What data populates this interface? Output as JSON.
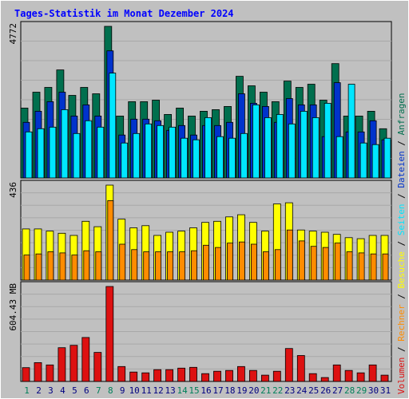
{
  "chart_data": {
    "type": "bar",
    "title": "Tages-Statistik im Monat Dezember 2024",
    "categories": [
      "1",
      "2",
      "3",
      "4",
      "5",
      "6",
      "7",
      "8",
      "9",
      "10",
      "11",
      "12",
      "13",
      "14",
      "15",
      "16",
      "17",
      "18",
      "19",
      "20",
      "21",
      "22",
      "23",
      "24",
      "25",
      "26",
      "27",
      "28",
      "29",
      "30",
      "31"
    ],
    "weekend_days": [
      "1",
      "7",
      "8",
      "14",
      "15",
      "21",
      "22",
      "28",
      "29"
    ],
    "panels": [
      {
        "name": "hits",
        "axis_label": "4772",
        "ymax": 4772,
        "series": [
          {
            "name": "Anfragen",
            "color": "#006f4e",
            "values": [
              2200,
              2700,
              2850,
              3400,
              2600,
              2850,
              2650,
              4772,
              1950,
              2400,
              2400,
              2450,
              2000,
              2200,
              1950,
              2100,
              2150,
              2250,
              3200,
              2900,
              2700,
              2400,
              3050,
              2850,
              2950,
              2450,
              3600,
              1950,
              1950,
              2100,
              1550
            ]
          },
          {
            "name": "Dateien",
            "color": "#0033cc",
            "values": [
              1750,
              2100,
              2400,
              2700,
              1950,
              2300,
              1950,
              4000,
              1350,
              1850,
              1850,
              1800,
              1500,
              1650,
              1350,
              1650,
              1650,
              1750,
              2650,
              2350,
              2250,
              1750,
              2500,
              2300,
              2300,
              1300,
              3000,
              1450,
              1450,
              1800,
              1200
            ]
          },
          {
            "name": "Seiten",
            "color": "#00e6ff",
            "values": [
              1450,
              1550,
              1600,
              2150,
              1400,
              1800,
              1600,
              3300,
              1100,
              1400,
              1700,
              1650,
              1600,
              1250,
              1200,
              1900,
              1300,
              1250,
              1400,
              2300,
              1900,
              2000,
              1700,
              2100,
              1900,
              2350,
              1300,
              2950,
              1100,
              1050,
              1250
            ]
          }
        ]
      },
      {
        "name": "visits",
        "axis_label": "436",
        "ymax": 436,
        "series": [
          {
            "name": "Besuche",
            "color": "#ffff00",
            "values": [
              235,
              235,
              225,
              215,
              205,
              270,
              245,
              436,
              280,
              240,
              250,
              205,
              220,
              225,
              240,
              265,
              270,
              290,
              300,
              265,
              225,
              350,
              355,
              230,
              225,
              220,
              210,
              195,
              190,
              205,
              205
            ]
          },
          {
            "name": "Rechner",
            "color": "#ff8c00",
            "values": [
              115,
              120,
              130,
              125,
              115,
              135,
              130,
              365,
              165,
              140,
              130,
              130,
              130,
              130,
              135,
              160,
              150,
              170,
              175,
              165,
              130,
              140,
              230,
              180,
              155,
              150,
              170,
              130,
              125,
              120,
              120
            ]
          }
        ]
      },
      {
        "name": "volume",
        "axis_label": "604.43 MB",
        "ymax": 604.43,
        "series": [
          {
            "name": "Volumen",
            "color": "#dd1111",
            "values": [
              88,
              120,
              105,
              215,
              230,
              280,
              185,
              604.43,
              95,
              60,
              55,
              75,
              75,
              85,
              90,
              50,
              65,
              70,
              95,
              70,
              40,
              65,
              210,
              165,
              50,
              25,
              105,
              70,
              55,
              105,
              40
            ]
          }
        ]
      }
    ],
    "legend_vertical": [
      "Volumen",
      "Rechner",
      "Besuche",
      "Seiten",
      "Dateien",
      "Anfragen"
    ],
    "grid": true,
    "legend_placement": "right-vertical"
  },
  "colors": {
    "background": "#c0c0c0",
    "plot_bg": "#c0c0c0",
    "border": "#000000",
    "title": "#0000ff",
    "weekday_label": "#000080",
    "weekend_label": "#00805a"
  }
}
